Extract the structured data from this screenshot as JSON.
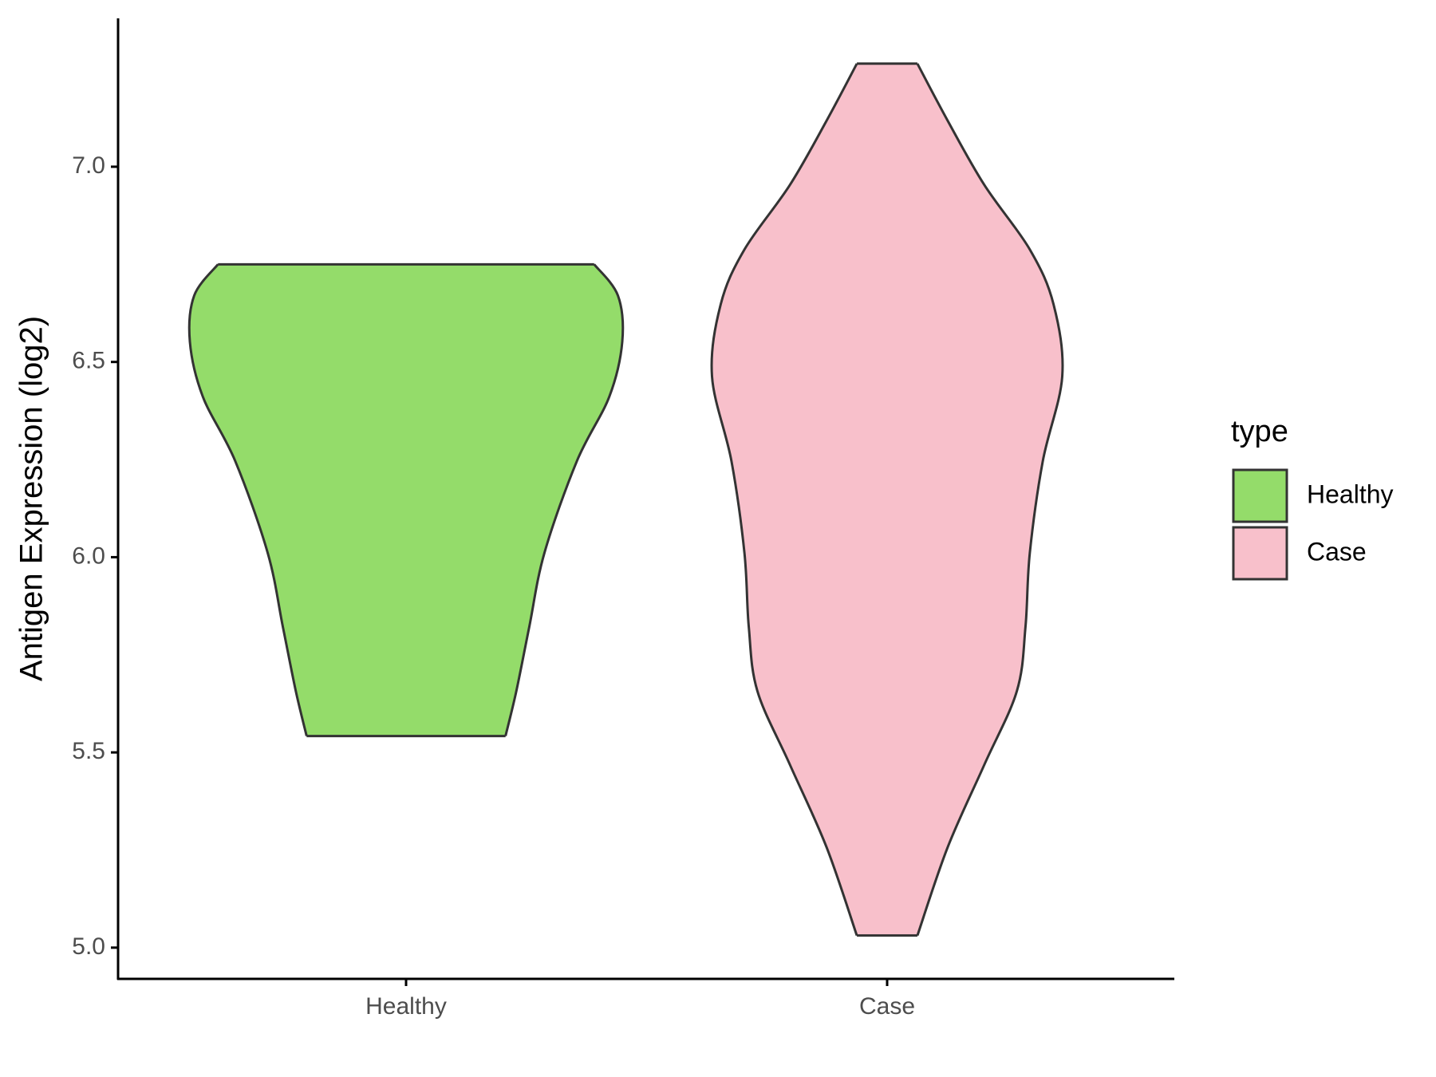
{
  "chart_data": {
    "type": "violin",
    "ylabel": "Antigen Expression (log2)",
    "categories": [
      "Healthy",
      "Case"
    ],
    "legend_title": "type",
    "series": [
      {
        "name": "Healthy",
        "color": "#94dc6a",
        "y": [
          6.75,
          6.67,
          6.552,
          6.411,
          6.246,
          6.011,
          5.822,
          5.657,
          5.542
        ],
        "density": [
          0.87,
          0.98,
          1.0,
          0.94,
          0.79,
          0.64,
          0.57,
          0.51,
          0.46
        ]
      },
      {
        "name": "Case",
        "color": "#f8c0cb",
        "y": [
          7.264,
          7.118,
          6.953,
          6.788,
          6.647,
          6.463,
          6.246,
          6.011,
          5.822,
          5.657,
          5.469,
          5.257,
          5.031
        ],
        "density": [
          0.14,
          0.28,
          0.45,
          0.66,
          0.77,
          0.81,
          0.72,
          0.66,
          0.64,
          0.6,
          0.45,
          0.28,
          0.14
        ]
      }
    ],
    "ylim": [
      4.92,
      7.38
    ],
    "yticks": [
      {
        "value": 5,
        "label": "5.0"
      },
      5.5,
      {
        "value": 6,
        "label": "6.0"
      },
      6.5,
      {
        "value": 7,
        "label": "7.0"
      }
    ]
  }
}
